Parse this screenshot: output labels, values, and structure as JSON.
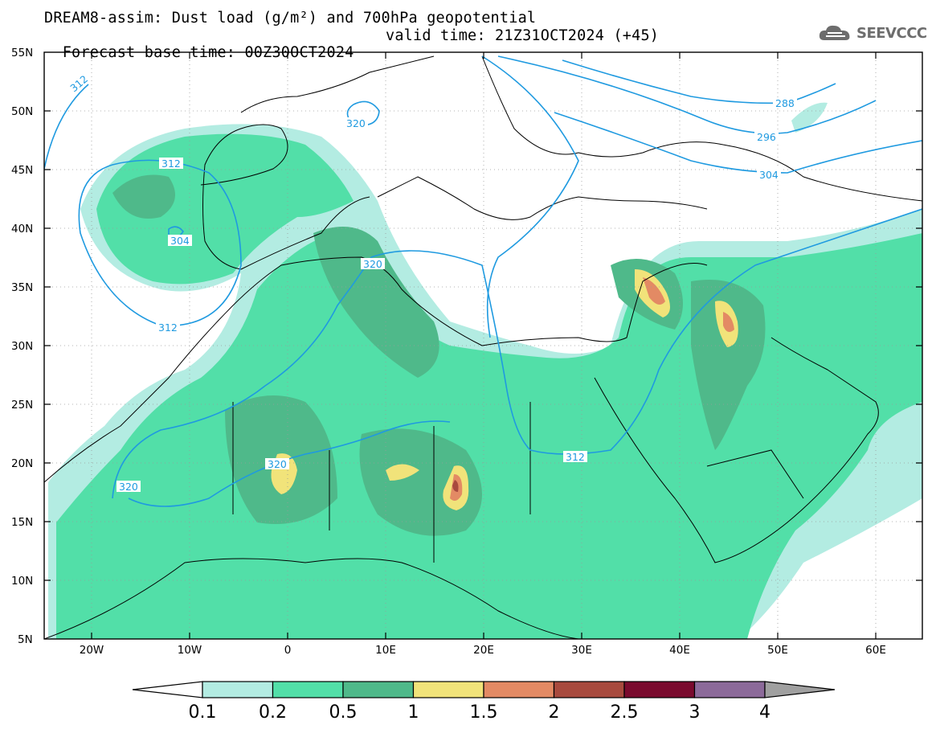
{
  "title": {
    "line1": "DREAM8-assim: Dust load (g/m²) and 700hPa geopotential",
    "line2_left": "Forecast base time: 00Z30OCT2024",
    "line2_right": "valid time: 21Z31OCT2024 (+45)"
  },
  "logo": {
    "text": "SEEVCCC",
    "icon": "cloud-icon"
  },
  "axes": {
    "lat_labels": [
      "55N",
      "50N",
      "45N",
      "40N",
      "35N",
      "30N",
      "25N",
      "20N",
      "15N",
      "10N",
      "5N"
    ],
    "lon_labels": [
      "20W",
      "10W",
      "0",
      "10E",
      "20E",
      "30E",
      "40E",
      "50E",
      "60E"
    ],
    "lon_range": [
      -25,
      65
    ],
    "lat_range": [
      5,
      55
    ]
  },
  "colorbar": {
    "labels": [
      "0.1",
      "0.2",
      "0.5",
      "1",
      "1.5",
      "2",
      "2.5",
      "3",
      "4"
    ],
    "colors": [
      "#b3ece2",
      "#52dfa8",
      "#4fb98a",
      "#f1e37a",
      "#e38a64",
      "#a84a3e",
      "#7a0a2e",
      "#8c6a9a"
    ],
    "over_color": "#a0a0a0",
    "under_color": "#ffffff"
  },
  "contour_labels": [
    "312",
    "320",
    "312",
    "304",
    "312",
    "320",
    "320",
    "320",
    "312",
    "288",
    "296",
    "304"
  ],
  "colors": {
    "contour": "#1f9ae0",
    "coast": "#000000",
    "grid": "#9a9a9a"
  }
}
